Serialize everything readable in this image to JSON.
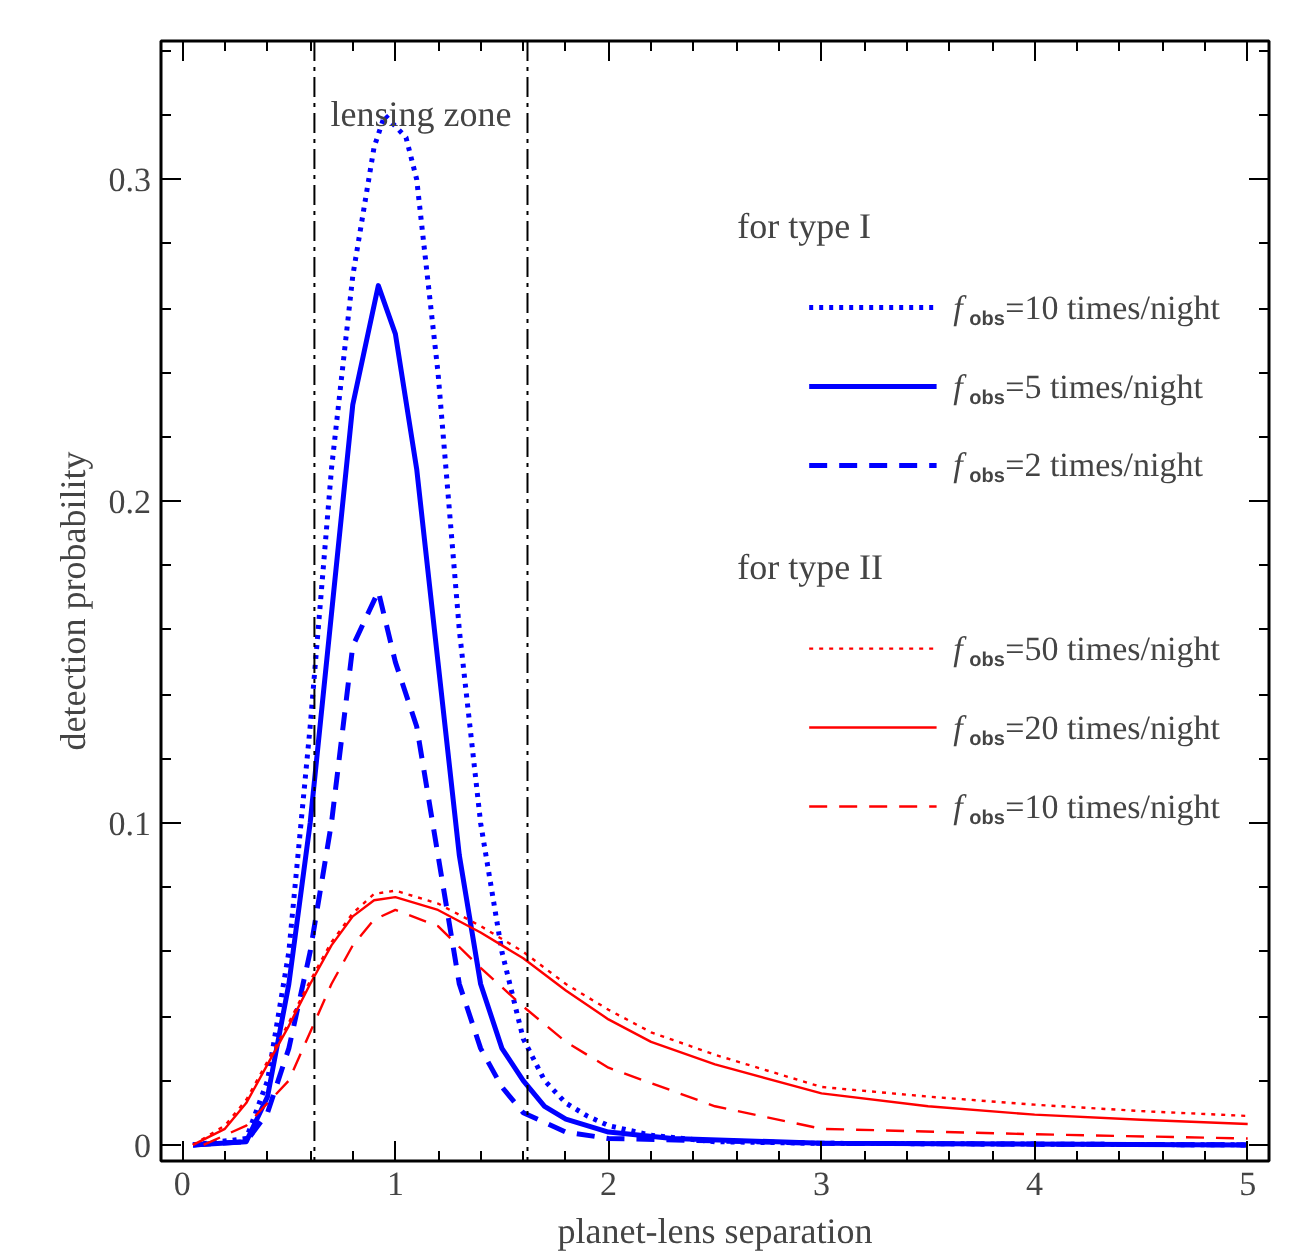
{
  "chart_data": {
    "type": "line",
    "xlabel": "planet-lens separation",
    "ylabel": "detection probability",
    "xlim": [
      -0.1,
      5.1
    ],
    "ylim": [
      -0.005,
      0.343
    ],
    "xticks": [
      0,
      1,
      2,
      3,
      4,
      5
    ],
    "yticks": [
      0,
      0.1,
      0.2,
      0.3
    ],
    "grid": false,
    "legend": "top right",
    "marker": "none",
    "annotations": [
      "lensing zone",
      "for type I",
      "for type II"
    ],
    "ref_lines": [
      {
        "axis": "x",
        "value": 0.62,
        "color": "#000000",
        "line_style": "dashdot"
      },
      {
        "axis": "x",
        "value": 1.62,
        "color": "#000000",
        "line_style": "dashdot"
      }
    ],
    "series": [
      {
        "name": "f$_{obs}$=10 times/night",
        "color": "#0000ff",
        "line_style": "dotted",
        "x": [
          0.05,
          0.3,
          0.4,
          0.5,
          0.6,
          0.7,
          0.8,
          0.9,
          0.95,
          1.05,
          1.1,
          1.2,
          1.3,
          1.4,
          1.5,
          1.6,
          1.7,
          1.8,
          1.9,
          2.0,
          2.2,
          2.5,
          3.0,
          5.0
        ],
        "values": [
          0,
          0.002,
          0.02,
          0.06,
          0.13,
          0.21,
          0.27,
          0.31,
          0.32,
          0.313,
          0.3,
          0.24,
          0.16,
          0.1,
          0.06,
          0.033,
          0.02,
          0.013,
          0.009,
          0.006,
          0.003,
          0.001,
          0.0005,
          0
        ]
      },
      {
        "name": "f$_{obs}$=5 times/night",
        "color": "#0000ff",
        "line_style": "solid",
        "x": [
          0.05,
          0.3,
          0.4,
          0.5,
          0.6,
          0.7,
          0.8,
          0.92,
          1.0,
          1.1,
          1.2,
          1.3,
          1.4,
          1.5,
          1.6,
          1.7,
          1.8,
          2.0,
          2.3,
          3.0,
          5.0
        ],
        "values": [
          0,
          0.001,
          0.015,
          0.05,
          0.1,
          0.165,
          0.23,
          0.267,
          0.252,
          0.21,
          0.15,
          0.09,
          0.05,
          0.03,
          0.02,
          0.012,
          0.008,
          0.004,
          0.002,
          0.0005,
          0
        ]
      },
      {
        "name": "f$_{obs}$=2 times/night",
        "color": "#0000ff",
        "line_style": "dashed",
        "x": [
          0.05,
          0.3,
          0.4,
          0.5,
          0.6,
          0.7,
          0.8,
          0.92,
          1.0,
          1.1,
          1.2,
          1.3,
          1.4,
          1.5,
          1.6,
          1.8,
          2.0,
          3.0,
          5.0
        ],
        "values": [
          0,
          0.001,
          0.01,
          0.03,
          0.06,
          0.1,
          0.155,
          0.172,
          0.15,
          0.13,
          0.09,
          0.05,
          0.03,
          0.018,
          0.01,
          0.004,
          0.002,
          0.0005,
          0
        ]
      },
      {
        "name": "f$_{obs}$=50 times/night",
        "color": "#ff0000",
        "line_style": "dotted",
        "x": [
          0.05,
          0.2,
          0.3,
          0.4,
          0.5,
          0.6,
          0.7,
          0.8,
          0.9,
          1.0,
          1.2,
          1.4,
          1.6,
          1.8,
          2.0,
          2.2,
          2.5,
          3.0,
          3.5,
          4.0,
          4.5,
          5.0
        ],
        "values": [
          0,
          0.006,
          0.014,
          0.026,
          0.038,
          0.051,
          0.063,
          0.072,
          0.078,
          0.079,
          0.075,
          0.068,
          0.06,
          0.05,
          0.042,
          0.035,
          0.028,
          0.018,
          0.015,
          0.0125,
          0.0105,
          0.009
        ]
      },
      {
        "name": "f$_{obs}$=20 times/night",
        "color": "#ff0000",
        "line_style": "solid",
        "x": [
          0.05,
          0.2,
          0.3,
          0.4,
          0.5,
          0.6,
          0.7,
          0.8,
          0.9,
          1.0,
          1.2,
          1.4,
          1.6,
          1.8,
          2.0,
          2.2,
          2.5,
          3.0,
          3.5,
          4.0,
          4.5,
          5.0
        ],
        "values": [
          0,
          0.005,
          0.013,
          0.025,
          0.037,
          0.05,
          0.062,
          0.071,
          0.076,
          0.077,
          0.073,
          0.066,
          0.058,
          0.048,
          0.039,
          0.032,
          0.025,
          0.016,
          0.012,
          0.0094,
          0.0078,
          0.0065
        ]
      },
      {
        "name": "f$_{obs}$=10 times/night",
        "color": "#ff0000",
        "line_style": "dashed",
        "x": [
          0.1,
          0.3,
          0.5,
          0.6,
          0.7,
          0.8,
          0.9,
          1.0,
          1.2,
          1.4,
          1.6,
          1.8,
          2.0,
          2.5,
          3.0,
          4.0,
          5.0
        ],
        "values": [
          0,
          0.006,
          0.02,
          0.035,
          0.05,
          0.062,
          0.07,
          0.073,
          0.068,
          0.055,
          0.043,
          0.032,
          0.024,
          0.012,
          0.005,
          0.0033,
          0.002
        ]
      }
    ]
  }
}
